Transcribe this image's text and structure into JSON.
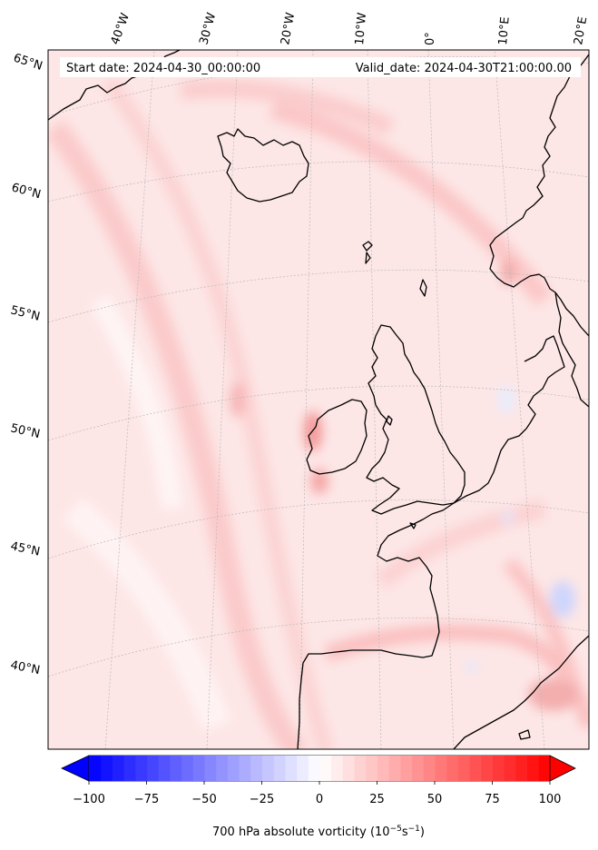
{
  "header": {
    "start_date": "Start date: 2024-04-30_00:00:00",
    "valid_date": "Valid_date: 2024-04-30T21:00:00.00"
  },
  "longitude_labels": [
    "40°W",
    "30°W",
    "20°W",
    "10°W",
    "0°",
    "10°E",
    "20°E"
  ],
  "latitude_labels": [
    "65°N",
    "60°N",
    "55°N",
    "50°N",
    "45°N",
    "40°N"
  ],
  "colorbar": {
    "ticks": [
      "−100",
      "−75",
      "−50",
      "−25",
      "0",
      "25",
      "50",
      "75",
      "100"
    ],
    "label_main": "700 hPa absolute vorticity (10",
    "label_exp1": "−5",
    "label_mid": "s",
    "label_exp2": "−1",
    "label_end": ")",
    "min": -100,
    "max": 100,
    "levels": 40,
    "extend": "both",
    "colormap": "bwr",
    "colors": {
      "low": "#0000ff",
      "mid": "#ffffff",
      "high": "#ff0000"
    }
  },
  "map": {
    "projection": "conic",
    "background_color": "#fde4e4",
    "coastline_color": "#000000",
    "gridline_color": "#b8b8b8"
  }
}
